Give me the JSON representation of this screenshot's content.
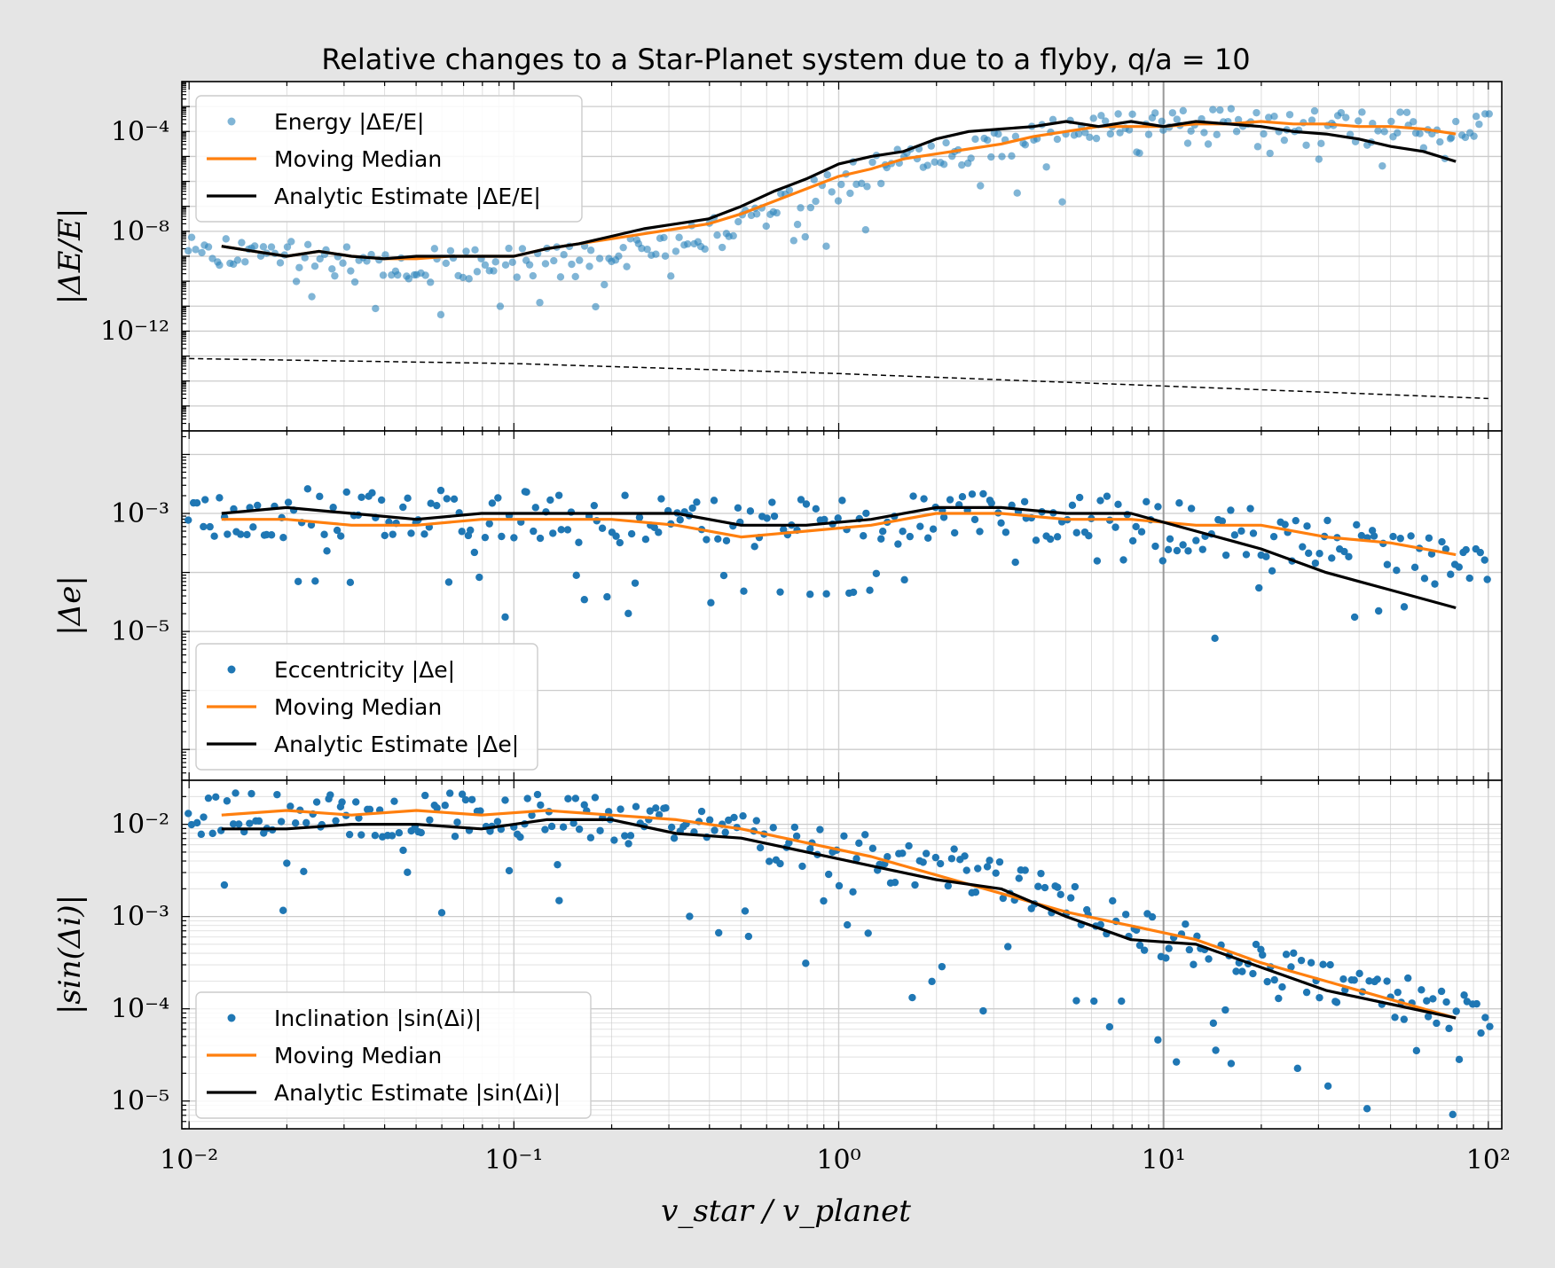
{
  "colors": {
    "background": "#e5e5e5",
    "scatter": "#1f77b4",
    "scatter_energy": "#2b83ba",
    "median": "#ff7f0e",
    "analytic": "#000000",
    "grid": "#cccccc",
    "marker_line": "#999999"
  },
  "chart_data": {
    "type": "scatter",
    "title": "Relative changes to a Star-Planet system due to a flyby, q/a = 10",
    "xlabel": "v_star / v_planet",
    "xscale": "log",
    "xlim": [
      0.0095,
      110
    ],
    "x_ticks": [
      0.01,
      0.1,
      1,
      10,
      100
    ],
    "x_tick_labels": [
      "10⁻²",
      "10⁻¹",
      "10⁰",
      "10¹",
      "10²"
    ],
    "vertical_marker_x": 10,
    "grid": true,
    "panels": [
      {
        "ylabel": "|ΔE/E|",
        "yscale": "log",
        "ylim": [
          1e-16,
          0.01
        ],
        "y_ticks": [
          1e-12,
          1e-08,
          0.0001
        ],
        "y_tick_labels": [
          "10⁻¹²",
          "10⁻⁸",
          "10⁻⁴"
        ],
        "legend_position": "upper-left",
        "series": [
          {
            "name": "Energy |ΔE/E|",
            "kind": "scatter",
            "alpha": 0.6,
            "x_range": [
              0.01,
              100
            ],
            "count": 330,
            "seed": 11,
            "trend_x": [
              -2,
              -1.7,
              -1.3,
              -1,
              -0.6,
              -0.3,
              0,
              0.3,
              0.6,
              0.8,
              1,
              1.3,
              1.6,
              2
            ],
            "trend_y": [
              -8.5,
              -9.0,
              -9.3,
              -9.3,
              -8.8,
              -7.8,
              -6.0,
              -4.9,
              -4.3,
              -3.8,
              -3.7,
              -3.7,
              -3.8,
              -3.9
            ],
            "spread": 0.9,
            "low_tail": 2.2
          },
          {
            "name": "Moving Median",
            "kind": "line",
            "color": "median",
            "x": [
              -1.9,
              -1.8,
              -1.7,
              -1.6,
              -1.5,
              -1.4,
              -1.3,
              -1.2,
              -1.1,
              -1.0,
              -0.9,
              -0.8,
              -0.7,
              -0.6,
              -0.5,
              -0.4,
              -0.3,
              -0.2,
              -0.1,
              0.0,
              0.1,
              0.2,
              0.3,
              0.4,
              0.5,
              0.6,
              0.7,
              0.8,
              0.9,
              1.0,
              1.1,
              1.2,
              1.3,
              1.4,
              1.5,
              1.6,
              1.7,
              1.8,
              1.9
            ],
            "y": [
              -8.6,
              -8.8,
              -9.0,
              -8.8,
              -9.0,
              -9.1,
              -9.1,
              -9.0,
              -9.0,
              -9.0,
              -8.7,
              -8.5,
              -8.3,
              -8.1,
              -7.9,
              -7.7,
              -7.3,
              -6.8,
              -6.3,
              -5.8,
              -5.5,
              -5.1,
              -4.9,
              -4.7,
              -4.5,
              -4.2,
              -4.0,
              -3.8,
              -3.8,
              -3.8,
              -3.7,
              -3.7,
              -3.6,
              -3.7,
              -3.7,
              -3.8,
              -3.8,
              -3.9,
              -4.1
            ]
          },
          {
            "name": "Analytic Estimate |ΔE/E|",
            "kind": "line",
            "color": "analytic",
            "x": [
              -1.9,
              -1.8,
              -1.7,
              -1.6,
              -1.5,
              -1.4,
              -1.3,
              -1.2,
              -1.1,
              -1.0,
              -0.9,
              -0.8,
              -0.7,
              -0.6,
              -0.5,
              -0.4,
              -0.3,
              -0.2,
              -0.1,
              0.0,
              0.1,
              0.2,
              0.3,
              0.4,
              0.5,
              0.6,
              0.7,
              0.8,
              0.9,
              1.0,
              1.1,
              1.2,
              1.3,
              1.4,
              1.5,
              1.6,
              1.7,
              1.8,
              1.9
            ],
            "y": [
              -8.6,
              -8.8,
              -9.0,
              -8.8,
              -9.0,
              -9.1,
              -9.0,
              -9.0,
              -9.0,
              -9.0,
              -8.7,
              -8.5,
              -8.2,
              -7.9,
              -7.7,
              -7.5,
              -7.0,
              -6.4,
              -5.9,
              -5.3,
              -5.0,
              -4.8,
              -4.3,
              -4.0,
              -3.9,
              -3.8,
              -3.6,
              -3.8,
              -3.6,
              -3.8,
              -3.6,
              -3.7,
              -3.8,
              -4.0,
              -4.1,
              -4.3,
              -4.6,
              -4.8,
              -5.2
            ]
          },
          {
            "name": "",
            "kind": "dashed",
            "color": "analytic",
            "x": [
              -2,
              -1,
              0,
              1,
              2
            ],
            "y": [
              -13.1,
              -13.3,
              -13.7,
              -14.2,
              -14.7
            ]
          }
        ]
      },
      {
        "ylabel": "|Δe|",
        "yscale": "log",
        "ylim": [
          3e-08,
          0.025
        ],
        "y_ticks": [
          1e-05,
          0.001
        ],
        "y_tick_labels": [
          "10⁻⁵",
          "10⁻³"
        ],
        "legend_position": "lower-left",
        "series": [
          {
            "name": "Eccentricity |Δe|",
            "kind": "scatter",
            "alpha": 1,
            "x_range": [
              0.01,
              100
            ],
            "count": 300,
            "seed": 23,
            "trend_x": [
              -2,
              -1,
              0,
              0.5,
              0.8,
              1,
              1.3,
              1.6,
              2
            ],
            "trend_y": [
              -3.0,
              -3.0,
              -3.1,
              -3.0,
              -3.1,
              -3.2,
              -3.3,
              -3.6,
              -3.9
            ],
            "spread": 0.6,
            "low_tail": 1.6
          },
          {
            "name": "Moving Median",
            "kind": "line",
            "color": "median",
            "x": [
              -1.9,
              -1.7,
              -1.5,
              -1.3,
              -1.1,
              -0.9,
              -0.7,
              -0.5,
              -0.3,
              -0.1,
              0.1,
              0.3,
              0.5,
              0.7,
              0.9,
              1.1,
              1.3,
              1.5,
              1.7,
              1.9
            ],
            "y": [
              -3.1,
              -3.1,
              -3.2,
              -3.2,
              -3.1,
              -3.1,
              -3.1,
              -3.2,
              -3.4,
              -3.3,
              -3.2,
              -3.0,
              -3.0,
              -3.1,
              -3.1,
              -3.2,
              -3.2,
              -3.4,
              -3.5,
              -3.7
            ]
          },
          {
            "name": "Analytic Estimate |Δe|",
            "kind": "line",
            "color": "analytic",
            "x": [
              -1.9,
              -1.7,
              -1.5,
              -1.3,
              -1.1,
              -0.9,
              -0.7,
              -0.5,
              -0.3,
              -0.1,
              0.1,
              0.3,
              0.5,
              0.7,
              0.9,
              1.1,
              1.3,
              1.5,
              1.7,
              1.9
            ],
            "y": [
              -3.0,
              -2.9,
              -3.0,
              -3.1,
              -3.0,
              -3.0,
              -3.0,
              -3.0,
              -3.2,
              -3.2,
              -3.1,
              -2.9,
              -2.9,
              -3.0,
              -3.0,
              -3.3,
              -3.6,
              -4.0,
              -4.3,
              -4.6
            ]
          }
        ]
      },
      {
        "ylabel": "|sin(Δi)|",
        "yscale": "log",
        "ylim": [
          5e-06,
          0.03
        ],
        "y_ticks": [
          1e-05,
          0.0001,
          0.001,
          0.01
        ],
        "y_tick_labels": [
          "10⁻⁵",
          "10⁻⁴",
          "10⁻³",
          "10⁻²"
        ],
        "legend_position": "lower-left",
        "series": [
          {
            "name": "Inclination |sin(Δi)|",
            "kind": "scatter",
            "alpha": 1,
            "x_range": [
              0.01,
              100
            ],
            "count": 330,
            "seed": 37,
            "trend_x": [
              -2,
              -1,
              -0.5,
              0,
              0.5,
              1,
              1.5,
              2
            ],
            "trend_y": [
              -1.9,
              -1.9,
              -2.0,
              -2.3,
              -2.6,
              -3.2,
              -3.7,
              -4.1
            ],
            "spread": 0.35,
            "low_tail": 1.3
          },
          {
            "name": "Moving Median",
            "kind": "line",
            "color": "median",
            "x": [
              -1.9,
              -1.7,
              -1.5,
              -1.3,
              -1.1,
              -0.9,
              -0.7,
              -0.5,
              -0.3,
              -0.1,
              0.1,
              0.3,
              0.5,
              0.7,
              0.9,
              1.1,
              1.3,
              1.5,
              1.7,
              1.9
            ],
            "y": [
              -1.9,
              -1.85,
              -1.9,
              -1.85,
              -1.9,
              -1.85,
              -1.9,
              -1.95,
              -2.05,
              -2.2,
              -2.35,
              -2.55,
              -2.75,
              -2.95,
              -3.1,
              -3.25,
              -3.5,
              -3.7,
              -3.9,
              -4.1
            ]
          },
          {
            "name": "Analytic Estimate |sin(Δi)|",
            "kind": "line",
            "color": "analytic",
            "x": [
              -1.9,
              -1.7,
              -1.5,
              -1.3,
              -1.1,
              -0.9,
              -0.7,
              -0.5,
              -0.3,
              -0.1,
              0.1,
              0.3,
              0.5,
              0.7,
              0.9,
              1.1,
              1.3,
              1.5,
              1.7,
              1.9
            ],
            "y": [
              -2.05,
              -2.05,
              -2.0,
              -2.0,
              -2.05,
              -1.95,
              -1.95,
              -2.1,
              -2.15,
              -2.3,
              -2.45,
              -2.6,
              -2.7,
              -3.0,
              -3.25,
              -3.3,
              -3.55,
              -3.8,
              -3.95,
              -4.1
            ]
          }
        ]
      }
    ]
  }
}
